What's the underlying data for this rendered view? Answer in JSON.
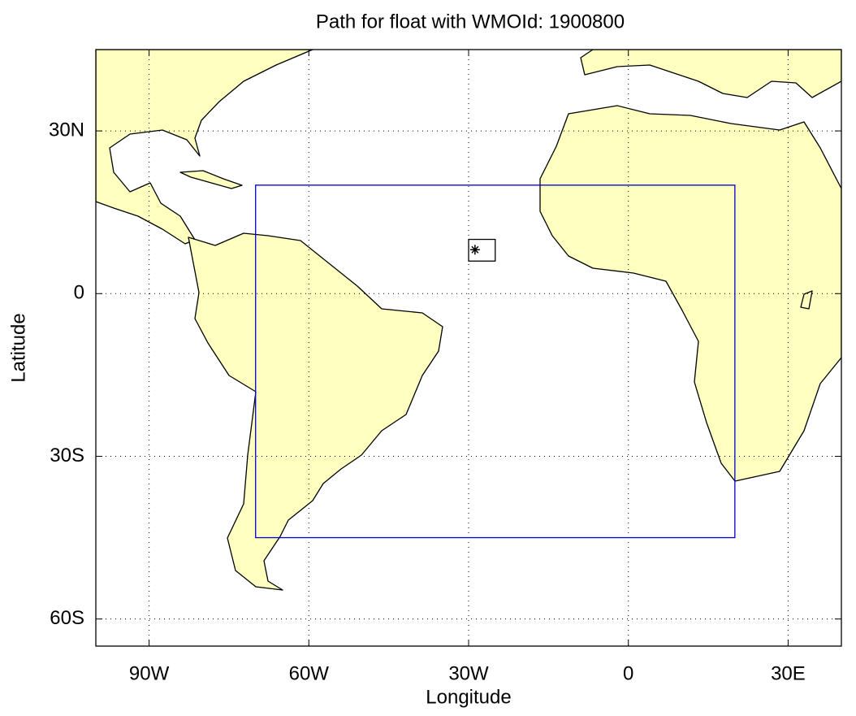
{
  "map": {
    "title": "Path for float with WMOId: 1900800",
    "x_label": "Longitude",
    "y_label": "Latitude",
    "xlim": [
      -100,
      40
    ],
    "ylim": [
      -65,
      45
    ],
    "xticks": [
      {
        "value": -90,
        "label": "90W"
      },
      {
        "value": -60,
        "label": "60W"
      },
      {
        "value": -30,
        "label": "30W"
      },
      0,
      {
        "value": 30,
        "label": "30E"
      }
    ],
    "yticks": [
      {
        "value": 30,
        "label": "30N"
      },
      0,
      {
        "value": -30,
        "label": "30S"
      },
      {
        "value": -60,
        "label": "60S"
      }
    ],
    "grid": true,
    "region": {
      "lon": [
        -70,
        20
      ],
      "lat": [
        -45,
        20
      ],
      "color": "#0000cc"
    },
    "float_box": {
      "lon": [
        -30,
        -25
      ],
      "lat": [
        6,
        10
      ],
      "color": "#000000"
    },
    "float": {
      "lon": -28.8,
      "lat": 8.1,
      "color": "#000000"
    },
    "land_color": "#ffffc0"
  }
}
